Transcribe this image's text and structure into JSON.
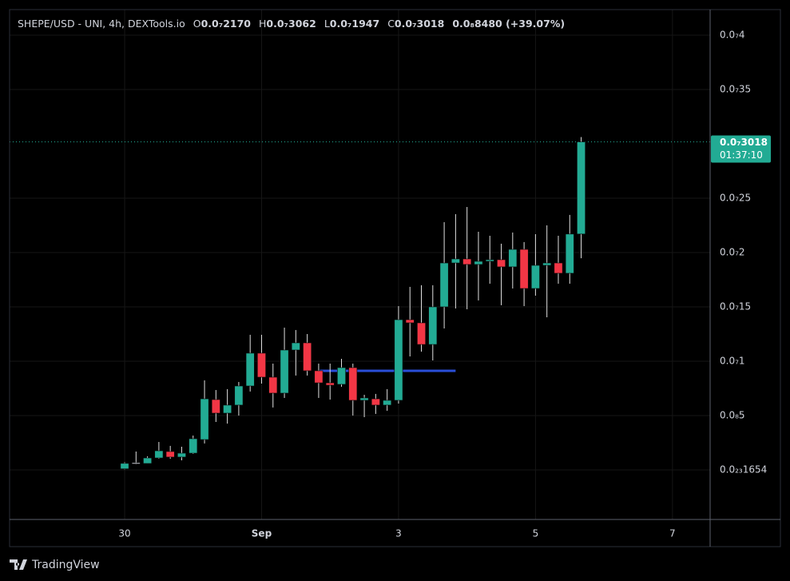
{
  "chart_data": {
    "type": "candlestick",
    "title": "SHEPE/USD - UNI, 4h, DEXTools.io",
    "legend": [
      {
        "key": "O",
        "value": "0.0₇2170"
      },
      {
        "key": "H",
        "value": "0.0₇3062"
      },
      {
        "key": "L",
        "value": "0.0₇1947"
      },
      {
        "key": "C",
        "value": "0.0₇3018"
      }
    ],
    "change": "0.0₈8480 (+39.07%)",
    "up_color": "#22ab94",
    "down_color": "#f23645",
    "open": [
      1e-10,
      6.6e-10,
      5.9e-10,
      1.1e-09,
      1.69e-09,
      1.18e-09,
      1.54e-09,
      2.79e-09,
      6.47e-09,
      5.22e-09,
      5.96e-09,
      7.72e-09,
      1.074e-08,
      8.53e-09,
      7.06e-09,
      1.103e-08,
      1.169e-08,
      9.12e-09,
      8.01e-09,
      7.87e-09,
      9.41e-09,
      6.4e-09,
      6.54e-09,
      5.96e-09,
      6.4e-09,
      1.382e-08,
      1.353e-08,
      1.154e-08,
      1.5e-08,
      1.904e-08,
      1.941e-08,
      1.89e-08,
      1.919e-08,
      1.934e-08,
      1.868e-08,
      2.029e-08,
      1.669e-08,
      1.882e-08,
      1.904e-08,
      1.809e-08,
      2.17e-08
    ],
    "high": [
      7e-10,
      1.69e-09,
      1.25e-09,
      2.57e-09,
      2.21e-09,
      2.13e-09,
      3.16e-09,
      8.24e-09,
      7.35e-09,
      7.43e-09,
      8.09e-09,
      1.243e-08,
      1.243e-08,
      9.78e-09,
      1.309e-08,
      1.287e-08,
      1.25e-08,
      9.78e-09,
      9.78e-09,
      1.022e-08,
      9.78e-09,
      6.91e-09,
      6.99e-09,
      7.43e-09,
      1.507e-08,
      1.684e-08,
      1.699e-08,
      1.699e-08,
      2.279e-08,
      2.353e-08,
      2.419e-08,
      2.191e-08,
      2.154e-08,
      2.081e-08,
      2.184e-08,
      2.096e-08,
      2.169e-08,
      2.25e-08,
      2.154e-08,
      2.346e-08,
      3.062e-08
    ],
    "low": [
      5e-11,
      5.1e-10,
      5.9e-10,
      1.03e-09,
      1.03e-09,
      8.8e-10,
      1.47e-09,
      2.43e-09,
      4.41e-09,
      4.26e-09,
      5e-09,
      7.21e-09,
      7.94e-09,
      5.74e-09,
      6.62e-09,
      8.68e-09,
      8.68e-09,
      6.62e-09,
      6.47e-09,
      7.65e-09,
      5e-09,
      4.85e-09,
      5.15e-09,
      5.44e-09,
      6.1e-09,
      1.044e-08,
      1.088e-08,
      1.007e-08,
      1.301e-08,
      1.485e-08,
      1.478e-08,
      1.559e-08,
      1.713e-08,
      1.515e-08,
      1.669e-08,
      1.507e-08,
      1.603e-08,
      1.404e-08,
      1.713e-08,
      1.713e-08,
      1.947e-08
    ],
    "close": [
      6e-10,
      6.6e-10,
      1.1e-09,
      1.76e-09,
      1.18e-09,
      1.54e-09,
      2.87e-09,
      6.54e-09,
      5.22e-09,
      5.96e-09,
      7.72e-09,
      1.074e-08,
      8.53e-09,
      7.06e-09,
      1.103e-08,
      1.169e-08,
      9.12e-09,
      8.01e-09,
      7.79e-09,
      9.41e-09,
      6.4e-09,
      6.62e-09,
      5.96e-09,
      6.4e-09,
      1.382e-08,
      1.353e-08,
      1.154e-08,
      1.5e-08,
      1.904e-08,
      1.941e-08,
      1.89e-08,
      1.919e-08,
      1.934e-08,
      1.868e-08,
      2.029e-08,
      1.669e-08,
      1.882e-08,
      1.904e-08,
      1.809e-08,
      2.17e-08,
      3.018e-08
    ],
    "xlim": [
      -10.08,
      51.3
    ],
    "xticks": [
      {
        "value": 0,
        "label": "30"
      },
      {
        "value": 12,
        "label": "Sep"
      },
      {
        "value": 24,
        "label": "3"
      },
      {
        "value": 36,
        "label": "5"
      },
      {
        "value": 48,
        "label": "7"
      }
    ],
    "ylim": [
      -4.56e-09,
      4.235e-08
    ],
    "yticks": [
      {
        "value": 4e-08,
        "label": "0.0₇4"
      },
      {
        "value": 3.5e-08,
        "label": "0.0₇35"
      },
      {
        "value": 2.5e-08,
        "label": "0.0₇25"
      },
      {
        "value": 2e-08,
        "label": "0.0₇2"
      },
      {
        "value": 1.5e-08,
        "label": "0.0₇15"
      },
      {
        "value": 1e-08,
        "label": "0.0₇1"
      },
      {
        "value": 5e-09,
        "label": "0.0₈5"
      },
      {
        "value": 1.654e-24,
        "label": "0.0₂₃1654"
      }
    ],
    "grid": true,
    "last_price_label": "0.0₇3018",
    "countdown": "01:37:10",
    "lines": [
      {
        "value": 9.12e-09,
        "x": [
          17.1,
          29.0
        ],
        "color": "#2a4ed8"
      }
    ]
  },
  "footer": {
    "brand": "TradingView"
  }
}
